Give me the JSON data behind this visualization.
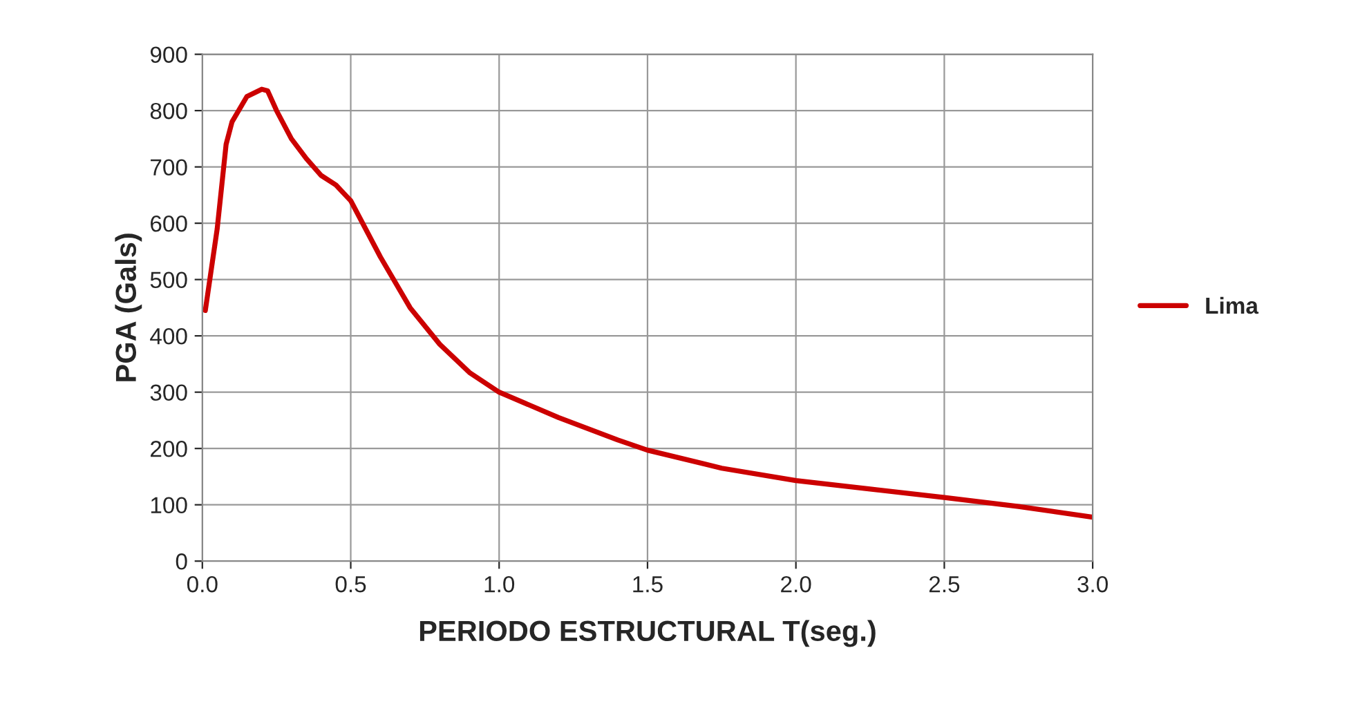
{
  "chart_data": {
    "type": "line",
    "xlabel": "PERIODO ESTRUCTURAL T(seg.)",
    "ylabel": "PGA (Gals)",
    "xlim": [
      0,
      3
    ],
    "xticks": [
      {
        "value": 0,
        "label": "0.0"
      },
      {
        "value": 0.5,
        "label": "0.5"
      },
      {
        "value": 1,
        "label": "1.0"
      },
      {
        "value": 1.5,
        "label": "1.5"
      },
      {
        "value": 2,
        "label": "2.0"
      },
      {
        "value": 2.5,
        "label": "2.5"
      },
      {
        "value": 3,
        "label": "3.0"
      }
    ],
    "ylim": [
      0,
      900
    ],
    "yticks": [
      0,
      100,
      200,
      300,
      400,
      500,
      600,
      700,
      800,
      900
    ],
    "grid": true,
    "legend": "right",
    "marker": "none",
    "line_style": "solid",
    "series": [
      {
        "name": "Lima",
        "color": "#cc0000",
        "x": [
          0.01,
          0.05,
          0.08,
          0.1,
          0.15,
          0.2,
          0.22,
          0.25,
          0.3,
          0.35,
          0.4,
          0.45,
          0.5,
          0.6,
          0.7,
          0.8,
          0.9,
          1.0,
          1.2,
          1.4,
          1.5,
          1.75,
          2.0,
          2.25,
          2.5,
          2.75,
          3.0
        ],
        "values": [
          445,
          590,
          740,
          780,
          825,
          838,
          835,
          800,
          750,
          715,
          685,
          668,
          640,
          540,
          450,
          385,
          335,
          300,
          255,
          215,
          197,
          165,
          143,
          128,
          113,
          97,
          78
        ]
      }
    ]
  }
}
